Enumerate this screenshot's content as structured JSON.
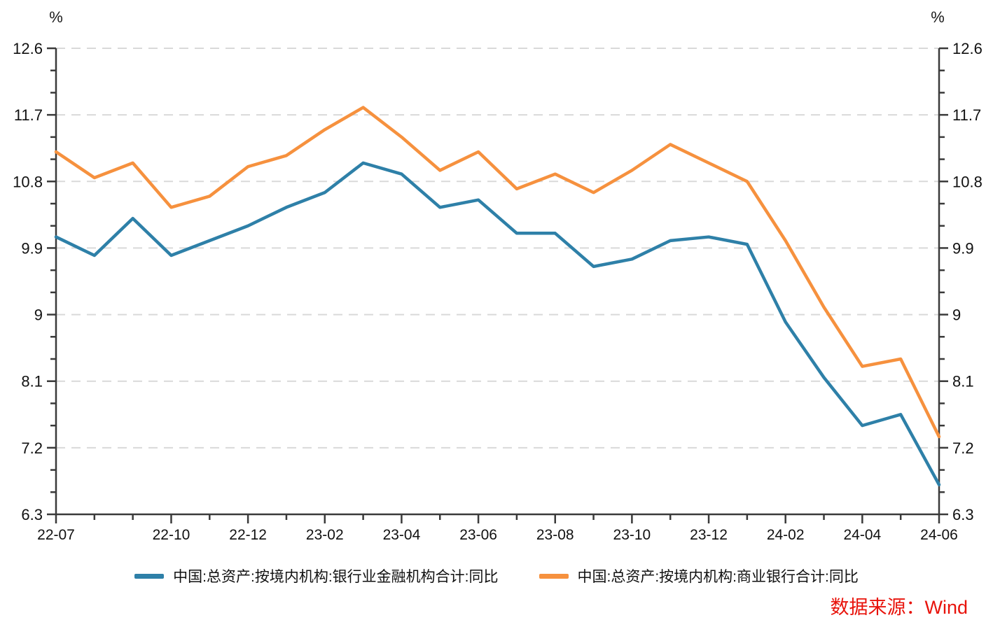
{
  "chart_data": {
    "type": "line",
    "title": "",
    "unit_left": "%",
    "unit_right": "%",
    "ylim": [
      6.3,
      12.6
    ],
    "y_ticks": [
      6.3,
      7.2,
      8.1,
      9,
      9.9,
      10.8,
      11.7,
      12.6
    ],
    "y_tick_labels": [
      "6.3",
      "7.2",
      "8.1",
      "9",
      "9.9",
      "10.8",
      "11.7",
      "12.6"
    ],
    "y_minor_step": 0.3,
    "grid": "horizontal-dashed",
    "legend_position": "bottom-center",
    "categories": [
      "22-07",
      "22-08",
      "22-09",
      "22-10",
      "22-11",
      "22-12",
      "23-01",
      "23-02",
      "23-03",
      "23-04",
      "23-05",
      "23-06",
      "23-07",
      "23-08",
      "23-09",
      "23-10",
      "23-11",
      "23-12",
      "24-01",
      "24-02",
      "24-03",
      "24-04",
      "24-05",
      "24-06"
    ],
    "x_labeled_ticks": [
      "22-07",
      "22-10",
      "22-12",
      "23-02",
      "23-04",
      "23-06",
      "23-08",
      "23-10",
      "23-12",
      "24-02",
      "24-04",
      "24-06"
    ],
    "series": [
      {
        "name": "中国:总资产:按境内机构:银行业金融机构合计:同比",
        "color": "#2e80a8",
        "values": [
          10.05,
          9.8,
          10.3,
          9.8,
          10.0,
          10.2,
          10.45,
          10.65,
          11.05,
          10.9,
          10.45,
          10.55,
          10.1,
          10.1,
          9.65,
          9.75,
          10.0,
          10.05,
          9.95,
          8.9,
          8.15,
          7.5,
          7.65,
          6.7
        ]
      },
      {
        "name": "中国:总资产:按境内机构:商业银行合计:同比",
        "color": "#f6913e",
        "values": [
          11.2,
          10.85,
          11.05,
          10.45,
          10.6,
          11.0,
          11.15,
          11.5,
          11.8,
          11.4,
          10.95,
          11.2,
          10.7,
          10.9,
          10.65,
          10.95,
          11.3,
          11.05,
          10.8,
          10.0,
          9.1,
          8.3,
          8.4,
          7.35
        ]
      }
    ],
    "colors": {
      "axis": "#3a3a3a",
      "grid": "#d9d9d9",
      "tick_text": "#111111",
      "source_red": "#e8130b"
    },
    "source_note": "数据来源：Wind"
  }
}
